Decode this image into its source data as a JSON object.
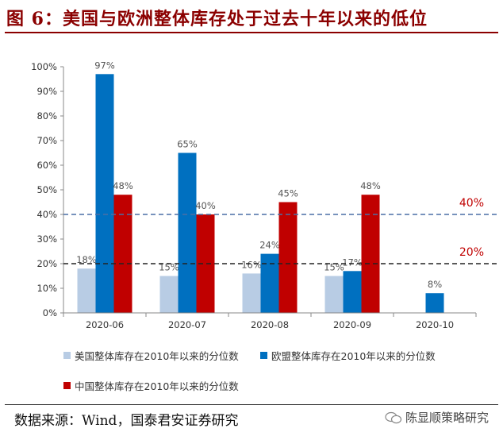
{
  "header": {
    "title": "图 6：美国与欧洲整体库存处于过去十年以来的低位"
  },
  "footer": {
    "source": "数据来源：Wind，国泰君安证券研究",
    "watermark": "陈显顺策略研究"
  },
  "colors": {
    "title": "#8b0000",
    "us": "#b8cce4",
    "eu": "#0070c0",
    "cn": "#c00000",
    "ref_blue": "#4a6fa5",
    "ref_black": "#222222",
    "ref_label": "#c00000"
  },
  "chart_data": {
    "type": "bar",
    "categories": [
      "2020-06",
      "2020-07",
      "2020-08",
      "2020-09",
      "2020-10"
    ],
    "series": [
      {
        "name": "美国整体库存在2010年以来的分位数",
        "color": "#b8cce4",
        "values": [
          18,
          15,
          16,
          15,
          null
        ],
        "labels": [
          "18%",
          "15%",
          "16%",
          "15%",
          ""
        ]
      },
      {
        "name": "欧盟整体库存在2010年以来的分位数",
        "color": "#0070c0",
        "values": [
          97,
          65,
          24,
          17,
          8
        ],
        "labels": [
          "97%",
          "65%",
          "24%",
          "17%",
          "8%"
        ]
      },
      {
        "name": "中国整体库存在2010年以来的分位数",
        "color": "#c00000",
        "values": [
          48,
          40,
          45,
          48,
          null
        ],
        "labels": [
          "48%",
          "40%",
          "45%",
          "48%",
          ""
        ]
      }
    ],
    "yticks": [
      "0%",
      "10%",
      "20%",
      "30%",
      "40%",
      "50%",
      "60%",
      "70%",
      "80%",
      "90%",
      "100%"
    ],
    "ylim": [
      0,
      100
    ],
    "reference_lines": [
      {
        "value": 40,
        "label": "40%",
        "color": "#4a6fa5"
      },
      {
        "value": 20,
        "label": "20%",
        "color": "#222222"
      }
    ],
    "legend_position": "bottom",
    "grid": false
  }
}
